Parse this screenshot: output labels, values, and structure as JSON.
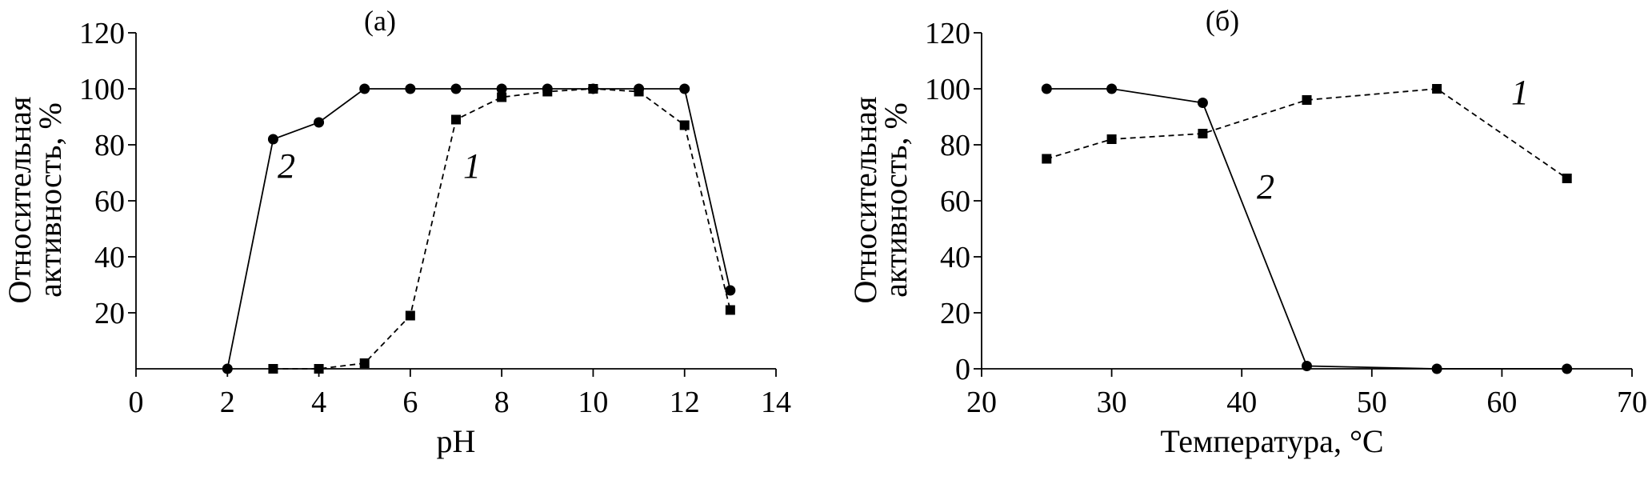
{
  "chart_data": [
    {
      "type": "line",
      "title": "(а)",
      "xlabel": "pH",
      "ylabel": [
        "Относительная",
        "активность, %"
      ],
      "xlim": [
        0,
        14
      ],
      "ylim": [
        0,
        120
      ],
      "xticks": [
        0,
        2,
        4,
        6,
        8,
        10,
        12,
        14
      ],
      "yticks": [
        20,
        40,
        60,
        80,
        100,
        120
      ],
      "grid": false,
      "series": [
        {
          "name": "1",
          "marker": "square",
          "style": "dashed",
          "x": [
            3,
            4,
            5,
            6,
            7,
            8,
            9,
            10,
            11,
            12,
            13
          ],
          "y": [
            0,
            0,
            2,
            19,
            89,
            97,
            99,
            100,
            99,
            87,
            21
          ]
        },
        {
          "name": "2",
          "marker": "circle",
          "style": "solid",
          "x": [
            2,
            3,
            4,
            5,
            6,
            7,
            8,
            9,
            10,
            11,
            12,
            13
          ],
          "y": [
            0,
            82,
            88,
            100,
            100,
            100,
            100,
            100,
            100,
            100,
            100,
            28
          ]
        }
      ]
    },
    {
      "type": "line",
      "title": "(б)",
      "xlabel": "Температура, °С",
      "ylabel": [
        "Относительная",
        "активность, %"
      ],
      "xlim": [
        20,
        70
      ],
      "ylim": [
        0,
        120
      ],
      "xticks": [
        20,
        30,
        40,
        50,
        60,
        70
      ],
      "yticks": [
        0,
        20,
        40,
        60,
        80,
        100,
        120
      ],
      "grid": false,
      "series": [
        {
          "name": "1",
          "marker": "square",
          "style": "dashed",
          "x": [
            25,
            30,
            37,
            45,
            55,
            65
          ],
          "y": [
            75,
            82,
            84,
            96,
            100,
            68
          ]
        },
        {
          "name": "2",
          "marker": "circle",
          "style": "solid",
          "x": [
            25,
            30,
            37,
            45,
            55,
            65
          ],
          "y": [
            100,
            100,
            95,
            1,
            0,
            0
          ]
        }
      ]
    }
  ]
}
